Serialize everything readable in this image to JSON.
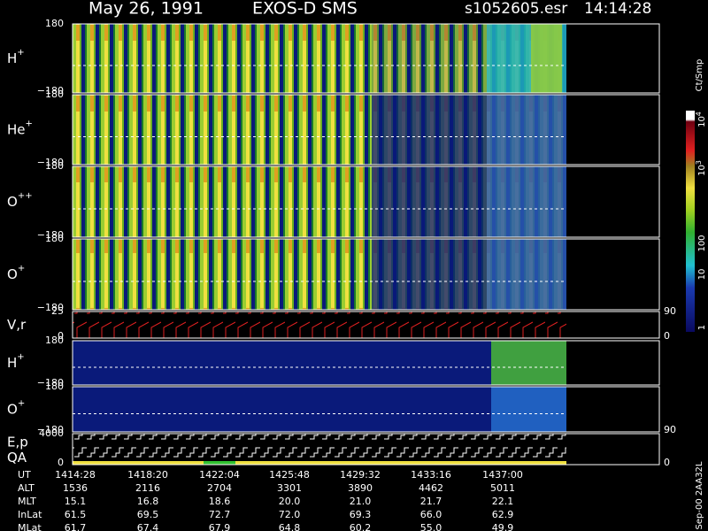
{
  "header": {
    "date": "May 26, 1991",
    "instrument": "EXOS-D SMS",
    "file": "s1052605.esr",
    "time": "14:14:28"
  },
  "panels": [
    {
      "name": "H",
      "sup": "+",
      "top": "180",
      "bottom": "−180"
    },
    {
      "name": "He",
      "sup": "+",
      "top": "180",
      "bottom": "−180"
    },
    {
      "name": "O",
      "sup": "++",
      "top": "180",
      "bottom": "−180"
    },
    {
      "name": "O",
      "sup": "+",
      "top": "180",
      "bottom": "−180"
    },
    {
      "name": "V,r",
      "top": "25",
      "bottom": "0",
      "right_top": "90",
      "right_bottom": "0"
    },
    {
      "name": "H",
      "sup": "+",
      "top": "180",
      "bottom": "−180"
    },
    {
      "name": "O",
      "sup": "+",
      "top": "180",
      "bottom": "−180",
      "right_bottom": "90"
    },
    {
      "name": "E,p",
      "name2": "QA",
      "top": "4000",
      "bottom": "0",
      "right_bottom": "0"
    }
  ],
  "colorbar": {
    "unit": "Ct/Smp",
    "labels": [
      {
        "base": "10",
        "exp": "4"
      },
      {
        "base": "10",
        "exp": "3"
      },
      {
        "base": "100"
      },
      {
        "base": "10"
      },
      {
        "base": "1"
      }
    ]
  },
  "table": {
    "rows": [
      [
        "UT",
        "1414:28",
        "1418:20",
        "1422:04",
        "1425:48",
        "1429:32",
        "1433:16",
        "1437:00"
      ],
      [
        "ALT",
        "1536",
        "2116",
        "2704",
        "3301",
        "3890",
        "4462",
        "5011"
      ],
      [
        "MLT",
        "15.1",
        "16.8",
        "18.6",
        "20.0",
        "21.0",
        "21.7",
        "22.1"
      ],
      [
        "InLat",
        "61.5",
        "69.5",
        "72.7",
        "72.0",
        "69.3",
        "66.0",
        "62.9"
      ],
      [
        "MLat",
        "61.7",
        "67.4",
        "67.9",
        "64.8",
        "60.2",
        "55.0",
        "49.9"
      ]
    ]
  },
  "footer": "Sep-00  2AA32L"
}
